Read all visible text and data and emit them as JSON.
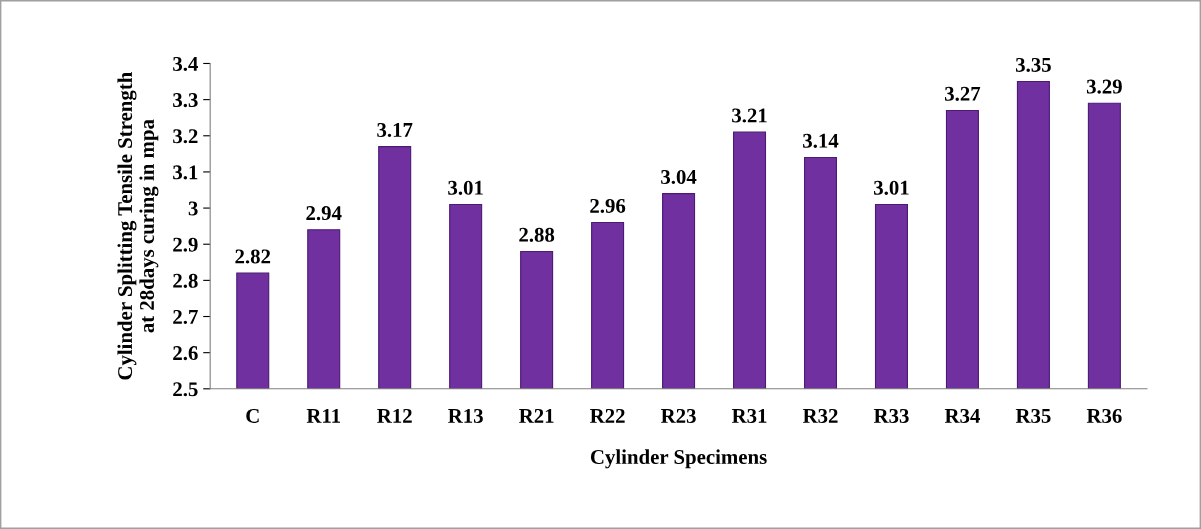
{
  "chart_data": {
    "type": "bar",
    "xlabel": "Cylinder Specimens",
    "ylabel": "Cylinder Splitting Tensile Strength\nat 28days curing in mpa",
    "categories": [
      "C",
      "R11",
      "R12",
      "R13",
      "R21",
      "R22",
      "R23",
      "R31",
      "R32",
      "R33",
      "R34",
      "R35",
      "R36"
    ],
    "values": [
      2.82,
      2.94,
      3.17,
      3.01,
      2.88,
      2.96,
      3.04,
      3.21,
      3.14,
      3.01,
      3.27,
      3.35,
      3.29
    ],
    "color": "#7030a0",
    "ylim": [
      2.5,
      3.4
    ],
    "yticks": [
      2.5,
      2.6,
      2.7,
      2.8,
      2.9,
      3,
      3.1,
      3.2,
      3.3,
      3.4
    ],
    "grid": false,
    "data_labels": true
  }
}
